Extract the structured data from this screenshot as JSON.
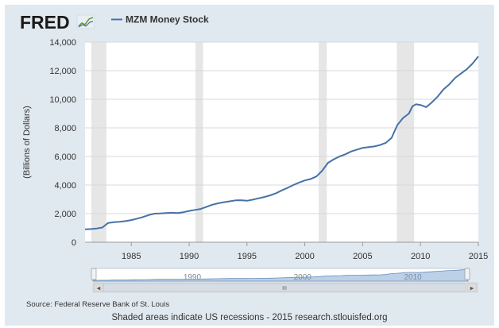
{
  "header": {
    "logo_text": "FRED",
    "logo_icon": "line-chart-icon",
    "legend_label": "MZM Money Stock"
  },
  "chart_data": {
    "type": "line",
    "title": "MZM Money Stock",
    "xlabel": "",
    "ylabel": "(Billions of Dollars)",
    "xlim": [
      1981,
      2015
    ],
    "ylim": [
      0,
      14000
    ],
    "x_ticks": [
      1985,
      1990,
      1995,
      2000,
      2005,
      2010,
      2015
    ],
    "y_ticks": [
      0,
      2000,
      4000,
      6000,
      8000,
      10000,
      12000,
      14000
    ],
    "y_tick_labels": [
      "0",
      "2,000",
      "4,000",
      "6,000",
      "8,000",
      "10,000",
      "12,000",
      "14,000"
    ],
    "grid": true,
    "legend": "top-left",
    "line_color": "#4572a7",
    "recessions": [
      [
        1981.55,
        1982.85
      ],
      [
        1990.55,
        1991.2
      ],
      [
        2001.2,
        2001.9
      ],
      [
        2007.95,
        2009.45
      ]
    ],
    "series": [
      {
        "name": "MZM Money Stock",
        "x": [
          1981.0,
          1981.5,
          1982.0,
          1982.5,
          1983.0,
          1983.5,
          1984.0,
          1984.5,
          1985.0,
          1985.5,
          1986.0,
          1986.5,
          1987.0,
          1987.5,
          1988.0,
          1988.5,
          1989.0,
          1989.5,
          1990.0,
          1990.5,
          1991.0,
          1991.5,
          1992.0,
          1992.5,
          1993.0,
          1993.5,
          1994.0,
          1994.5,
          1995.0,
          1995.5,
          1996.0,
          1996.5,
          1997.0,
          1997.5,
          1998.0,
          1998.5,
          1999.0,
          1999.5,
          2000.0,
          2000.5,
          2001.0,
          2001.5,
          2002.0,
          2002.5,
          2003.0,
          2003.5,
          2004.0,
          2004.5,
          2005.0,
          2005.5,
          2006.0,
          2006.5,
          2007.0,
          2007.5,
          2008.0,
          2008.5,
          2009.0,
          2009.3,
          2009.6,
          2010.0,
          2010.5,
          2011.0,
          2011.5,
          2012.0,
          2012.5,
          2013.0,
          2013.5,
          2014.0,
          2014.5,
          2015.0
        ],
        "y": [
          900,
          920,
          960,
          1030,
          1350,
          1400,
          1430,
          1480,
          1550,
          1650,
          1760,
          1900,
          2000,
          2010,
          2040,
          2060,
          2040,
          2100,
          2190,
          2260,
          2330,
          2480,
          2620,
          2720,
          2800,
          2860,
          2930,
          2940,
          2900,
          2980,
          3070,
          3160,
          3280,
          3420,
          3620,
          3800,
          4000,
          4170,
          4320,
          4420,
          4600,
          5000,
          5550,
          5800,
          6000,
          6150,
          6350,
          6480,
          6600,
          6650,
          6700,
          6800,
          6950,
          7300,
          8200,
          8700,
          9000,
          9500,
          9650,
          9600,
          9450,
          9800,
          10200,
          10700,
          11050,
          11500,
          11800,
          12100,
          12500,
          13000
        ]
      }
    ]
  },
  "navigator": {
    "year_labels": [
      "1990",
      "2000",
      "2010"
    ],
    "left_arrow": "◂",
    "right_arrow": "▸",
    "grip": "III"
  },
  "footer": {
    "source": "Source: Federal Reserve Bank of St. Louis",
    "caption": "Shaded areas indicate US recessions - 2015 research.stlouisfed.org"
  }
}
